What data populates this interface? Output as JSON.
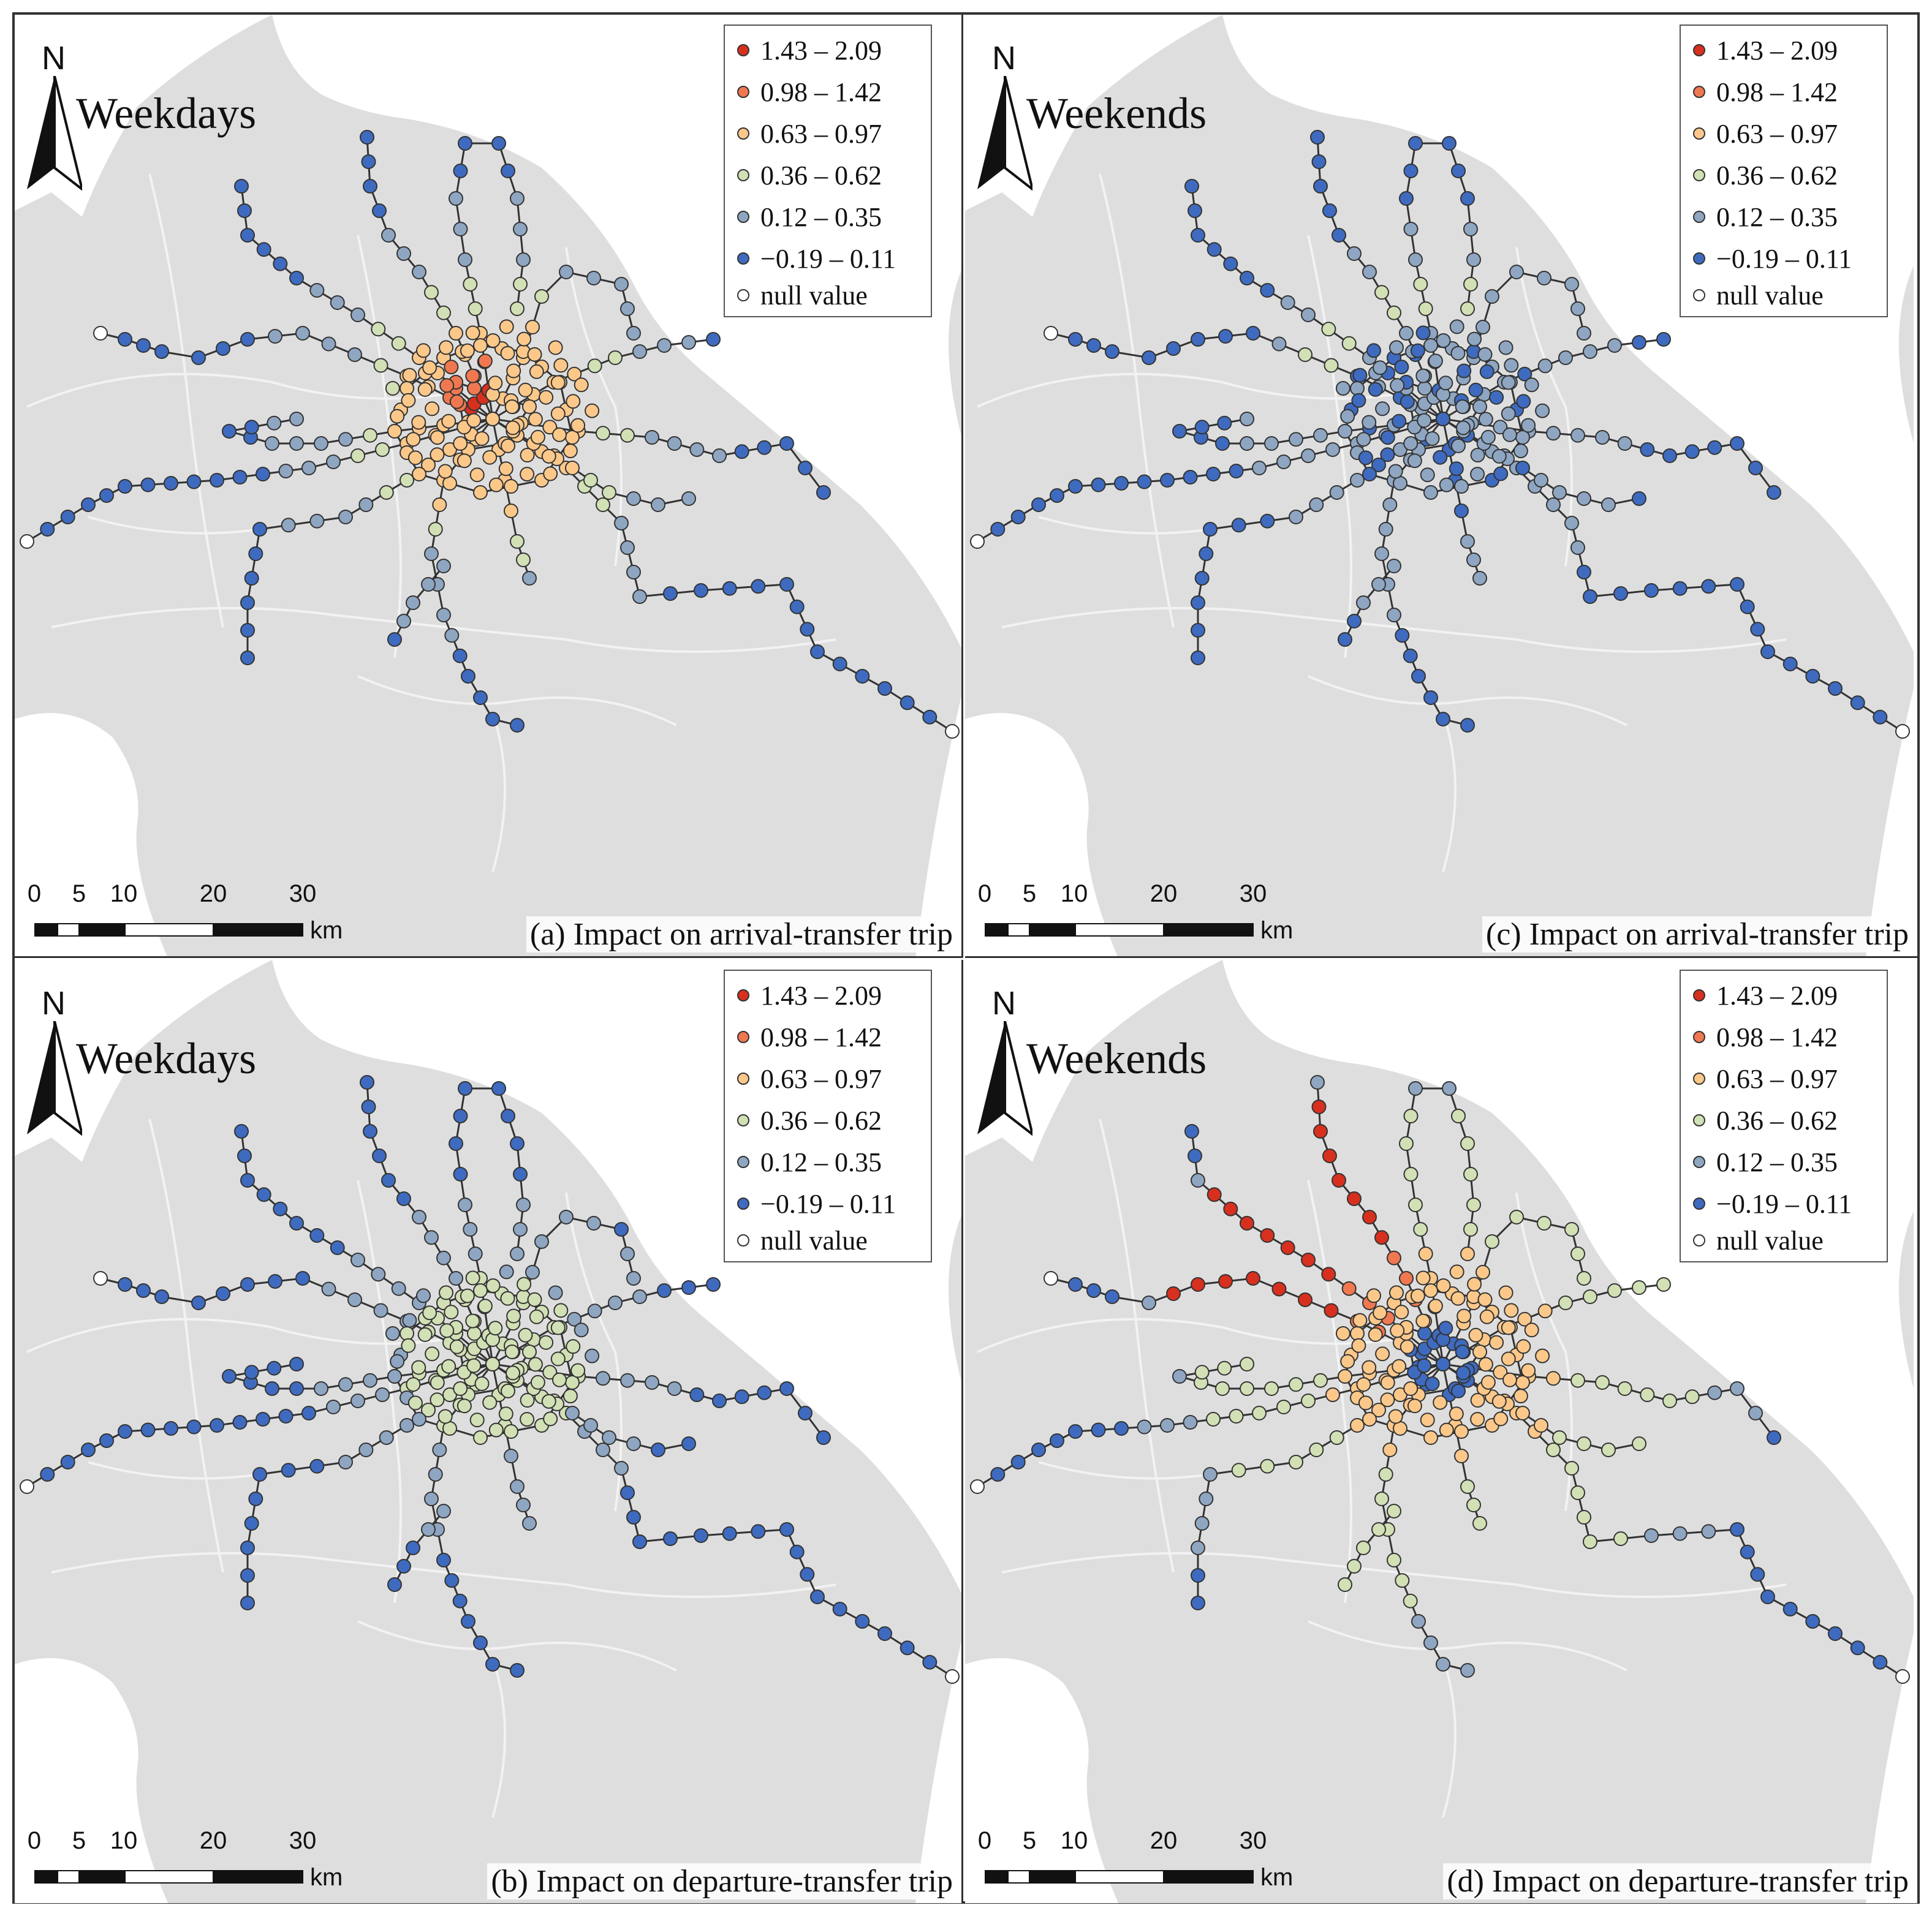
{
  "legend_classes": [
    {
      "label": "1.43 – 2.09",
      "color": "#d7301f"
    },
    {
      "label": "0.98 – 1.42",
      "color": "#f07850"
    },
    {
      "label": "0.63 – 0.97",
      "color": "#fbc88a"
    },
    {
      "label": "0.36 – 0.62",
      "color": "#d2e0b5"
    },
    {
      "label": "0.12 – 0.35",
      "color": "#8fa6c2"
    },
    {
      "label": "−0.19 – 0.11",
      "color": "#3e6bbf"
    },
    {
      "label": "null value",
      "color": "#ffffff"
    }
  ],
  "north_label": "N",
  "scale": {
    "ticks": [
      "0",
      "5",
      "10",
      "20",
      "30"
    ],
    "unit": "km"
  },
  "colors": {
    "land": "#dedede",
    "water": "#ffffff",
    "district_boundary": "#f2f2f2",
    "metro_line": "#333333"
  },
  "panels": [
    {
      "id": "a",
      "period": "Weekdays",
      "caption": "(a) Impact on arrival-transfer trip",
      "pattern": "core-warm"
    },
    {
      "id": "c",
      "period": "Weekends",
      "caption": "(c) Impact on arrival-transfer trip",
      "pattern": "all-blue"
    },
    {
      "id": "b",
      "period": "Weekdays",
      "caption": "(b) Impact on departure-transfer trip",
      "pattern": "core-light"
    },
    {
      "id": "d",
      "period": "Weekends",
      "caption": "(d) Impact on departure-transfer trip",
      "pattern": "north-hot"
    }
  ]
}
